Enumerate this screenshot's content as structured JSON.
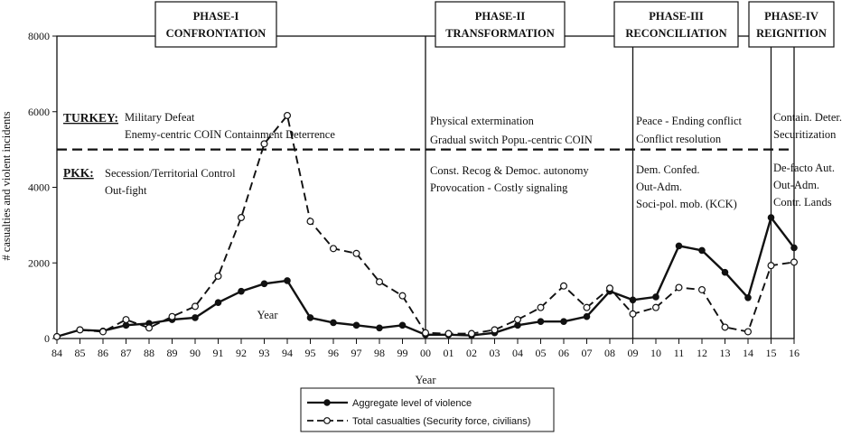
{
  "chart_data": {
    "type": "line",
    "xlabel": "Year",
    "ylabel": "# casualties and violent incidents",
    "ylim": [
      0,
      8000
    ],
    "yticks": [
      0,
      2000,
      4000,
      6000,
      8000
    ],
    "categories": [
      "84",
      "85",
      "86",
      "87",
      "88",
      "89",
      "90",
      "91",
      "92",
      "93",
      "94",
      "95",
      "96",
      "97",
      "98",
      "99",
      "00",
      "01",
      "02",
      "03",
      "04",
      "05",
      "06",
      "07",
      "08",
      "09",
      "10",
      "11",
      "12",
      "13",
      "14",
      "15",
      "16"
    ],
    "series": [
      {
        "name": "Aggregate level of violence",
        "style": "solid",
        "marker": "filled-circle",
        "values": [
          50,
          230,
          200,
          350,
          400,
          500,
          550,
          950,
          1250,
          1450,
          1530,
          550,
          420,
          350,
          280,
          350,
          100,
          100,
          80,
          150,
          350,
          450,
          450,
          580,
          1250,
          1020,
          1100,
          2450,
          2330,
          1750,
          1080,
          3200,
          2400
        ]
      },
      {
        "name": "Total casualties (Security force, civilians)",
        "style": "dashed",
        "marker": "open-circle",
        "values": [
          50,
          230,
          180,
          500,
          280,
          580,
          850,
          1650,
          3200,
          5150,
          5900,
          3100,
          2380,
          2250,
          1500,
          1130,
          150,
          130,
          130,
          230,
          500,
          820,
          1390,
          820,
          1330,
          650,
          820,
          1350,
          1290,
          300,
          180,
          1930,
          2020
        ]
      }
    ],
    "phases": [
      {
        "title": [
          "PHASE-I",
          "CONFRONTATION"
        ],
        "from": "84",
        "to": "00"
      },
      {
        "title": [
          "PHASE-II",
          "TRANSFORMATION"
        ],
        "from": "00",
        "to": "09"
      },
      {
        "title": [
          "PHASE-III",
          "RECONCILIATION"
        ],
        "from": "09",
        "to": "15"
      },
      {
        "title": [
          "PHASE-IV",
          "REIGNITION"
        ],
        "from": "15",
        "to": "16"
      }
    ],
    "divider_y": 5000,
    "annotations": {
      "turkey_label": "TURKEY:",
      "pkk_label": "PKK:",
      "phase1_turkey": [
        "Military Defeat",
        "Enemy-centric COIN   Containment Deterrence"
      ],
      "phase1_pkk": [
        "Secession/Territorial Control",
        "Out-fight"
      ],
      "phase2_turkey": [
        "Physical extermination",
        "Gradual switch Popu.-centric COIN"
      ],
      "phase2_pkk": [
        "Const. Recog & Democ. autonomy",
        "Provocation - Costly signaling"
      ],
      "phase3_turkey": [
        "Peace - Ending conflict",
        "Conflict resolution"
      ],
      "phase3_pkk": [
        "Dem. Confed.",
        "Out-Adm.",
        "Soci-pol. mob. (KCK)"
      ],
      "phase4_turkey": [
        "Contain. Deter.",
        "Securitization"
      ],
      "phase4_pkk": [
        "De-facto Aut.",
        "Out-Adm.",
        "Contr. Lands"
      ],
      "inner_year_label": "Year"
    },
    "legend": {
      "position": "bottom",
      "entries": [
        "Aggregate level of violence",
        "Total casualties (Security force, civilians)"
      ]
    }
  }
}
